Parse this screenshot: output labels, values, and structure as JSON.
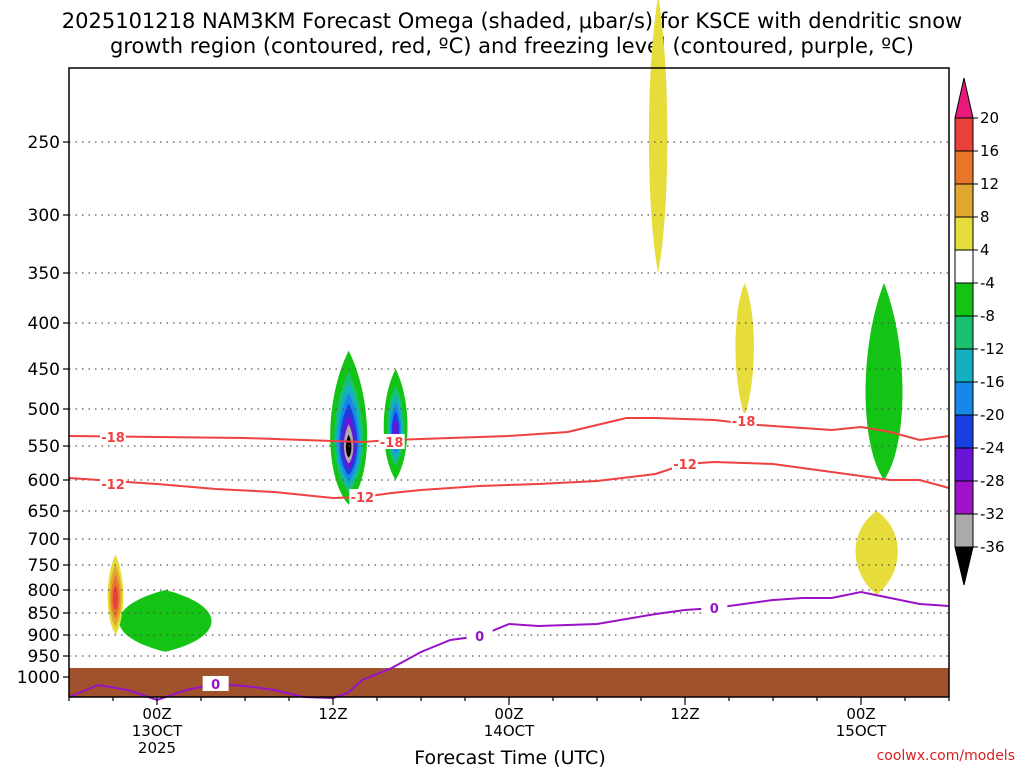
{
  "chart_data": {
    "type": "time-height-contour",
    "title_line1": "2025101218 NAM3KM Forecast Omega (shaded, μbar/s) for KSCE with dendritic snow",
    "title_line2": "growth region (contoured, red, ºC) and freezing level (contoured, purple, ºC)",
    "xlabel": "Forecast Time (UTC)",
    "credit": "coolwx.com/models",
    "y_pressure_labels": [
      "250",
      "300",
      "350",
      "400",
      "450",
      "500",
      "550",
      "600",
      "650",
      "700",
      "750",
      "800",
      "850",
      "900",
      "950",
      "1000"
    ],
    "y_pressure_values": [
      250,
      300,
      350,
      400,
      450,
      500,
      550,
      600,
      650,
      700,
      750,
      800,
      850,
      900,
      950,
      1000
    ],
    "x_ticks": [
      {
        "hour": 6,
        "line1": "00Z",
        "line2": "13OCT",
        "line3": "2025"
      },
      {
        "hour": 18,
        "line1": "12Z",
        "line2": "",
        "line3": ""
      },
      {
        "hour": 30,
        "line1": "00Z",
        "line2": "14OCT",
        "line3": ""
      },
      {
        "hour": 42,
        "line1": "12Z",
        "line2": "",
        "line3": ""
      },
      {
        "hour": 54,
        "line1": "00Z",
        "line2": "15OCT",
        "line3": ""
      }
    ],
    "x_range_hours": [
      0,
      60
    ],
    "colorbar": {
      "labels": [
        "20",
        "16",
        "12",
        "8",
        "4",
        "-4",
        "-8",
        "-12",
        "-16",
        "-20",
        "-24",
        "-28",
        "-32",
        "-36"
      ],
      "colors": [
        "#e8197a",
        "#e8403a",
        "#e8762a",
        "#e0a830",
        "#e6dc3c",
        "#ffffff",
        "#14c414",
        "#18c070",
        "#14b0c0",
        "#1888e8",
        "#1840e0",
        "#6a14d8",
        "#a012c8",
        "#aaaaaa",
        "#000000"
      ]
    },
    "contours": [
      {
        "name": "dgz-minus18",
        "label": "-18",
        "color": "#f04040",
        "points": [
          [
            0,
            436
          ],
          [
            6,
            437
          ],
          [
            12,
            438
          ],
          [
            16,
            440
          ],
          [
            18,
            441
          ],
          [
            20,
            442
          ],
          [
            22,
            440
          ],
          [
            26,
            438
          ],
          [
            30,
            436
          ],
          [
            34,
            432
          ],
          [
            36,
            425
          ],
          [
            38,
            418
          ],
          [
            40,
            418
          ],
          [
            44,
            420
          ],
          [
            47,
            425
          ],
          [
            50,
            428
          ],
          [
            52,
            430
          ],
          [
            54,
            427
          ],
          [
            56,
            432
          ],
          [
            58,
            440
          ],
          [
            60,
            436
          ]
        ],
        "label_at": [
          3,
          437
        ]
      },
      {
        "name": "dgz-minus18-b",
        "label": "-18",
        "color": "#f04040",
        "points": [],
        "label_at": [
          22,
          442
        ]
      },
      {
        "name": "dgz-minus18-c",
        "label": "-18",
        "color": "#f04040",
        "points": [],
        "label_at": [
          46,
          421
        ]
      },
      {
        "name": "dgz-minus12",
        "label": "-12",
        "color": "#f04040",
        "points": [
          [
            0,
            478
          ],
          [
            6,
            484
          ],
          [
            10,
            489
          ],
          [
            14,
            492
          ],
          [
            18,
            498
          ],
          [
            20,
            497
          ],
          [
            22,
            493
          ],
          [
            24,
            490
          ],
          [
            26,
            488
          ],
          [
            28,
            486
          ],
          [
            32,
            484
          ],
          [
            36,
            481
          ],
          [
            40,
            474
          ],
          [
            42,
            464
          ],
          [
            44,
            462
          ],
          [
            48,
            464
          ],
          [
            52,
            472
          ],
          [
            54,
            476
          ],
          [
            56,
            480
          ],
          [
            58,
            480
          ],
          [
            60,
            488
          ]
        ],
        "label_at": [
          3,
          484
        ]
      },
      {
        "name": "dgz-minus12-b",
        "label": "-12",
        "color": "#f04040",
        "points": [],
        "label_at": [
          20,
          497
        ]
      },
      {
        "name": "dgz-minus12-c",
        "label": "-12",
        "color": "#f04040",
        "points": [],
        "label_at": [
          42,
          464
        ]
      },
      {
        "name": "freezing-level",
        "label": "0",
        "color": "#9a12c8",
        "points": [
          [
            0,
            697
          ],
          [
            2,
            685
          ],
          [
            4,
            690
          ],
          [
            6,
            700
          ],
          [
            8,
            690
          ],
          [
            10,
            684
          ],
          [
            12,
            686
          ],
          [
            14,
            690
          ],
          [
            16,
            697
          ],
          [
            18,
            698
          ],
          [
            19,
            693
          ],
          [
            20,
            680
          ],
          [
            22,
            668
          ],
          [
            24,
            652
          ],
          [
            26,
            640
          ],
          [
            28,
            636
          ],
          [
            30,
            624
          ],
          [
            32,
            626
          ],
          [
            36,
            624
          ],
          [
            40,
            614
          ],
          [
            42,
            610
          ],
          [
            44,
            608
          ],
          [
            48,
            600
          ],
          [
            50,
            598
          ],
          [
            52,
            598
          ],
          [
            54,
            592
          ],
          [
            56,
            598
          ],
          [
            58,
            604
          ],
          [
            60,
            606
          ]
        ],
        "label_at": [
          10,
          684
        ]
      },
      {
        "name": "freezing-level-b",
        "label": "0",
        "color": "#9a12c8",
        "points": [],
        "label_at": [
          28,
          636
        ]
      },
      {
        "name": "freezing-level-c",
        "label": "0",
        "color": "#9a12c8",
        "points": [],
        "label_at": [
          44,
          608
        ]
      }
    ],
    "omega_features": [
      {
        "name": "strong-ascent-core",
        "hour": 19.0,
        "center_p": 555,
        "rise_p": 430,
        "fall_p": 640,
        "half_width_h": 1.4,
        "min_value": -36
      },
      {
        "name": "secondary-ascent-core",
        "hour": 22.2,
        "center_p": 530,
        "rise_p": 450,
        "fall_p": 600,
        "half_width_h": 0.9,
        "min_value": -28
      },
      {
        "name": "low-level-ascent",
        "hour": 6.5,
        "center_p": 870,
        "rise_p": 800,
        "fall_p": 940,
        "half_width_h": 3.5,
        "min_value": -8
      },
      {
        "name": "late-ascent-column",
        "hour": 55.5,
        "center_p": 500,
        "rise_p": 360,
        "fall_p": 600,
        "half_width_h": 1.4,
        "min_value": -8
      },
      {
        "name": "low-level-descent",
        "hour": 3.1,
        "center_p": 820,
        "rise_p": 730,
        "fall_p": 900,
        "half_width_h": 0.6,
        "max_value": 16
      },
      {
        "name": "upper-descent-plume",
        "hour": 40.1,
        "center_p": 250,
        "rise_p": 150,
        "fall_p": 350,
        "half_width_h": 0.7,
        "max_value": 4
      },
      {
        "name": "descent-column-late",
        "hour": 46.0,
        "center_p": 420,
        "rise_p": 360,
        "fall_p": 510,
        "half_width_h": 0.7,
        "max_value": 4
      },
      {
        "name": "descent-blob-late",
        "hour": 55.0,
        "center_p": 720,
        "rise_p": 650,
        "fall_p": 810,
        "half_width_h": 1.6,
        "max_value": 4
      }
    ]
  }
}
